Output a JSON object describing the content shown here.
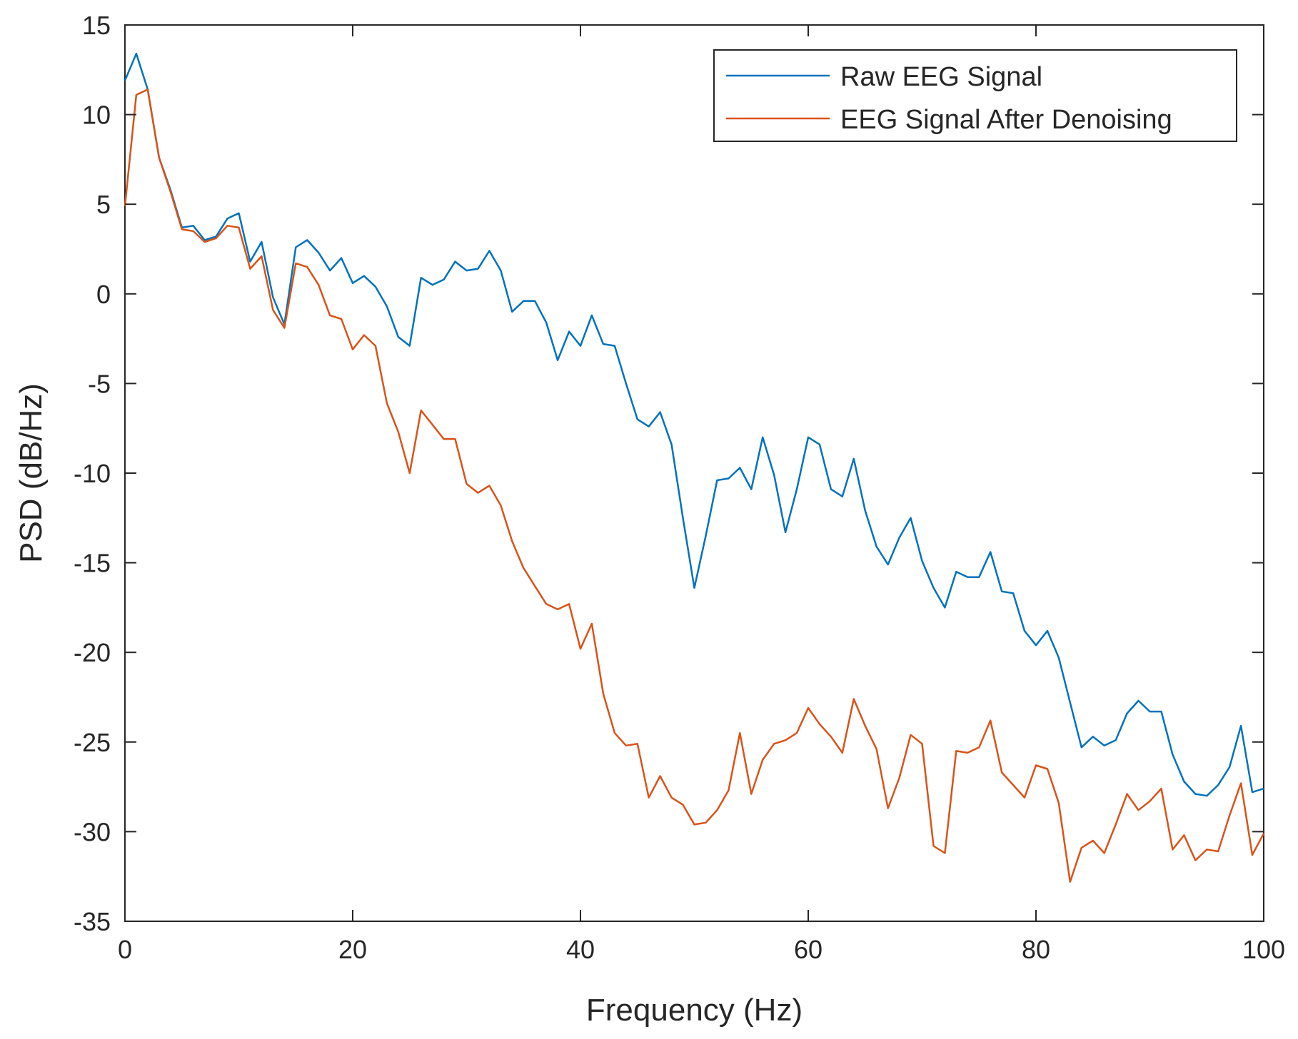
{
  "chart_data": {
    "type": "line",
    "title": "",
    "xlabel": "Frequency (Hz)",
    "ylabel": "PSD (dB/Hz)",
    "xlim": [
      0,
      100
    ],
    "ylim": [
      -35,
      15
    ],
    "xticks": [
      0,
      20,
      40,
      60,
      80,
      100
    ],
    "yticks": [
      15,
      10,
      5,
      0,
      -5,
      -10,
      -15,
      -20,
      -25,
      -30,
      -35
    ],
    "grid": false,
    "legend_position": "top-right",
    "x": [
      0,
      1,
      2,
      3,
      4,
      5,
      6,
      7,
      8,
      9,
      10,
      11,
      12,
      13,
      14,
      15,
      16,
      17,
      18,
      19,
      20,
      21,
      22,
      23,
      24,
      25,
      26,
      27,
      28,
      29,
      30,
      31,
      32,
      33,
      34,
      35,
      36,
      37,
      38,
      39,
      40,
      41,
      42,
      43,
      44,
      45,
      46,
      47,
      48,
      49,
      50,
      51,
      52,
      53,
      54,
      55,
      56,
      57,
      58,
      59,
      60,
      61,
      62,
      63,
      64,
      65,
      66,
      67,
      68,
      69,
      70,
      71,
      72,
      73,
      74,
      75,
      76,
      77,
      78,
      79,
      80,
      81,
      82,
      83,
      84,
      85,
      86,
      87,
      88,
      89,
      90,
      91,
      92,
      93,
      94,
      95,
      96,
      97,
      98,
      99,
      100
    ],
    "series": [
      {
        "name": "Raw EEG Signal",
        "color": "#0072BD",
        "values": [
          11.9,
          13.4,
          11.4,
          7.6,
          5.8,
          3.7,
          3.8,
          3.0,
          3.2,
          4.2,
          4.5,
          1.8,
          2.9,
          -0.2,
          -1.7,
          2.6,
          3.0,
          2.3,
          1.3,
          2.0,
          0.6,
          1.0,
          0.4,
          -0.7,
          -2.4,
          -2.9,
          0.9,
          0.5,
          0.8,
          1.8,
          1.3,
          1.4,
          2.4,
          1.3,
          -1.0,
          -0.4,
          -0.4,
          -1.6,
          -3.7,
          -2.1,
          -2.9,
          -1.2,
          -2.8,
          -2.9,
          -5.0,
          -7.0,
          -7.4,
          -6.6,
          -8.4,
          -12.5,
          -16.4,
          -13.5,
          -10.4,
          -10.3,
          -9.7,
          -10.9,
          -8.0,
          -10.1,
          -13.3,
          -10.9,
          -8.0,
          -8.4,
          -10.9,
          -11.3,
          -9.2,
          -12.1,
          -14.1,
          -15.1,
          -13.6,
          -12.5,
          -14.9,
          -16.4,
          -17.5,
          -15.5,
          -15.8,
          -15.8,
          -14.4,
          -16.6,
          -16.7,
          -18.8,
          -19.6,
          -18.8,
          -20.3,
          -22.8,
          -25.3,
          -24.7,
          -25.2,
          -24.9,
          -23.4,
          -22.7,
          -23.3,
          -23.3,
          -25.7,
          -27.2,
          -27.9,
          -28.0,
          -27.4,
          -26.4,
          -24.1,
          -27.8,
          -27.6
        ]
      },
      {
        "name": "EEG Signal After Denoising",
        "color": "#D95319",
        "values": [
          4.9,
          11.1,
          11.4,
          7.6,
          5.7,
          3.6,
          3.5,
          2.9,
          3.1,
          3.8,
          3.7,
          1.4,
          2.1,
          -0.9,
          -1.9,
          1.7,
          1.5,
          0.5,
          -1.2,
          -1.4,
          -3.1,
          -2.3,
          -2.9,
          -6.1,
          -7.7,
          -10.0,
          -6.5,
          -7.3,
          -8.1,
          -8.1,
          -10.6,
          -11.1,
          -10.7,
          -11.8,
          -13.8,
          -15.3,
          -16.3,
          -17.3,
          -17.6,
          -17.3,
          -19.8,
          -18.4,
          -22.3,
          -24.5,
          -25.2,
          -25.1,
          -28.1,
          -26.9,
          -28.1,
          -28.5,
          -29.6,
          -29.5,
          -28.8,
          -27.7,
          -24.5,
          -27.9,
          -26.0,
          -25.1,
          -24.9,
          -24.5,
          -23.1,
          -24.0,
          -24.7,
          -25.6,
          -22.6,
          -24.1,
          -25.4,
          -28.7,
          -27.0,
          -24.6,
          -25.1,
          -30.8,
          -31.2,
          -25.5,
          -25.6,
          -25.3,
          -23.8,
          -26.7,
          -27.4,
          -28.1,
          -26.3,
          -26.5,
          -28.4,
          -32.8,
          -30.9,
          -30.5,
          -31.2,
          -29.6,
          -27.9,
          -28.8,
          -28.3,
          -27.6,
          -31.0,
          -30.2,
          -31.6,
          -31.0,
          -31.1,
          -29.1,
          -27.3,
          -31.3,
          -30.1
        ]
      }
    ]
  }
}
